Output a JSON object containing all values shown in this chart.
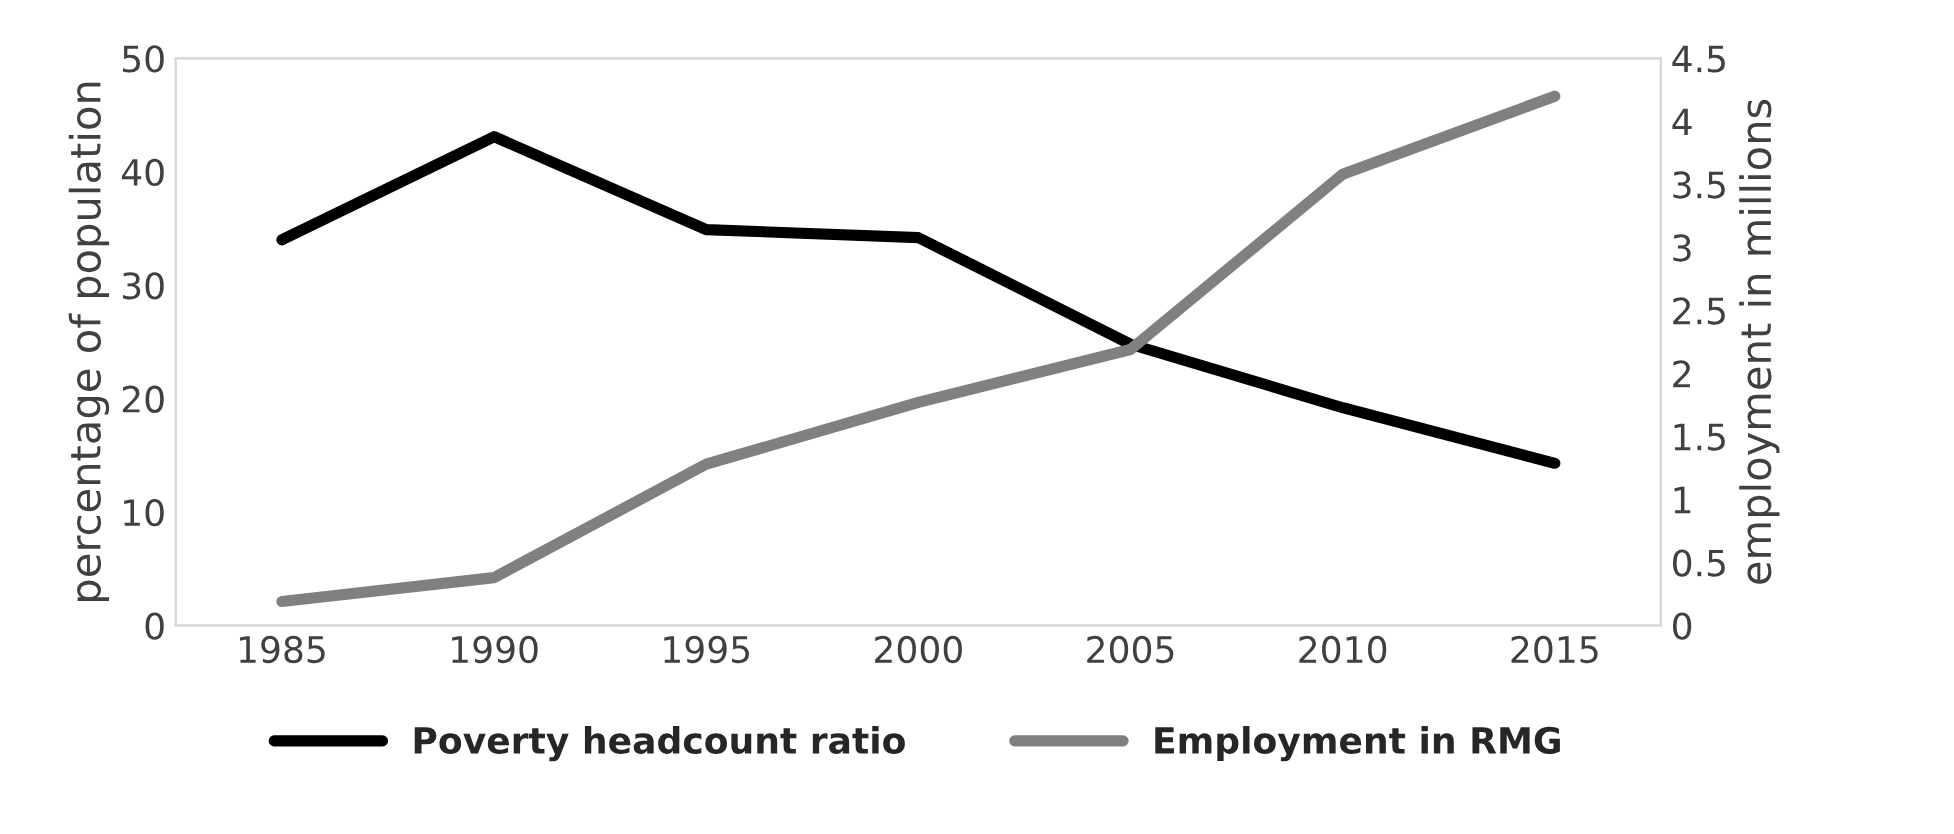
{
  "chart_data": {
    "type": "line",
    "ylabel": "percentage of population",
    "y2label": "employment in millions",
    "categories": [
      "1985",
      "1990",
      "1995",
      "2000",
      "2005",
      "2010",
      "2015"
    ],
    "series": [
      {
        "name": "Poverty headcount ratio",
        "color": "#000000",
        "values": [
          34.0,
          43.1,
          34.9,
          34.2,
          24.8,
          19.2,
          14.3
        ]
      },
      {
        "name": "Employment in RMG",
        "color": "#808080",
        "axis": "y2",
        "values": [
          0.19,
          0.38,
          1.28,
          1.77,
          2.19,
          3.58,
          4.2
        ]
      }
    ],
    "ylim": [
      0,
      50
    ],
    "yticks": [
      0,
      10,
      20,
      30,
      40,
      50
    ],
    "y2lim": [
      0,
      4.5
    ],
    "y2ticks": [
      0,
      0.5,
      1,
      1.5,
      2,
      2.5,
      3,
      3.5,
      4,
      4.5
    ],
    "grid": false,
    "legend": "bottom",
    "marker": "none",
    "line_style": "solid"
  }
}
